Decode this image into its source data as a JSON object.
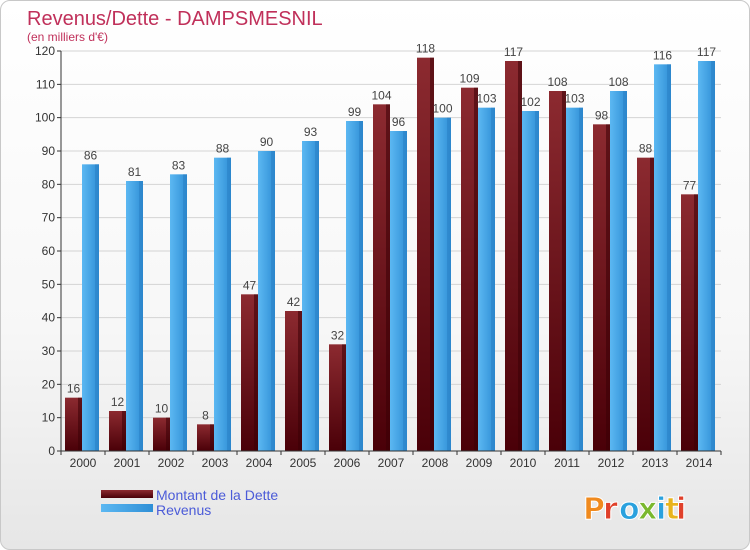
{
  "chart_data": {
    "type": "bar",
    "title": "Revenus/Dette - DAMPSMESNIL",
    "subtitle": "(en milliers d'€)",
    "categories": [
      "2000",
      "2001",
      "2002",
      "2003",
      "2004",
      "2005",
      "2006",
      "2007",
      "2008",
      "2009",
      "2010",
      "2011",
      "2012",
      "2013",
      "2014"
    ],
    "series": [
      {
        "name": "Montant de la Dette",
        "color": "#7a1a24",
        "values": [
          16,
          12,
          10,
          8,
          47,
          42,
          32,
          104,
          118,
          109,
          117,
          108,
          98,
          88,
          77
        ]
      },
      {
        "name": "Revenus",
        "color": "#3a9be0",
        "values": [
          86,
          81,
          83,
          88,
          90,
          93,
          99,
          96,
          100,
          103,
          102,
          103,
          108,
          116,
          117
        ]
      }
    ],
    "ylim": [
      0,
      120
    ],
    "yticks": [
      0,
      10,
      20,
      30,
      40,
      50,
      60,
      70,
      80,
      90,
      100,
      110,
      120
    ],
    "grid": true,
    "legend_position": "bottom-left",
    "xlabel": "",
    "ylabel": ""
  },
  "logo": {
    "text": "Proxiti",
    "letter_colors": [
      "#f08a1e",
      "#e0402a",
      "#2aa1de",
      "#7ab82e",
      "#2aa1de",
      "#e8b41e",
      "#e0402a"
    ]
  }
}
